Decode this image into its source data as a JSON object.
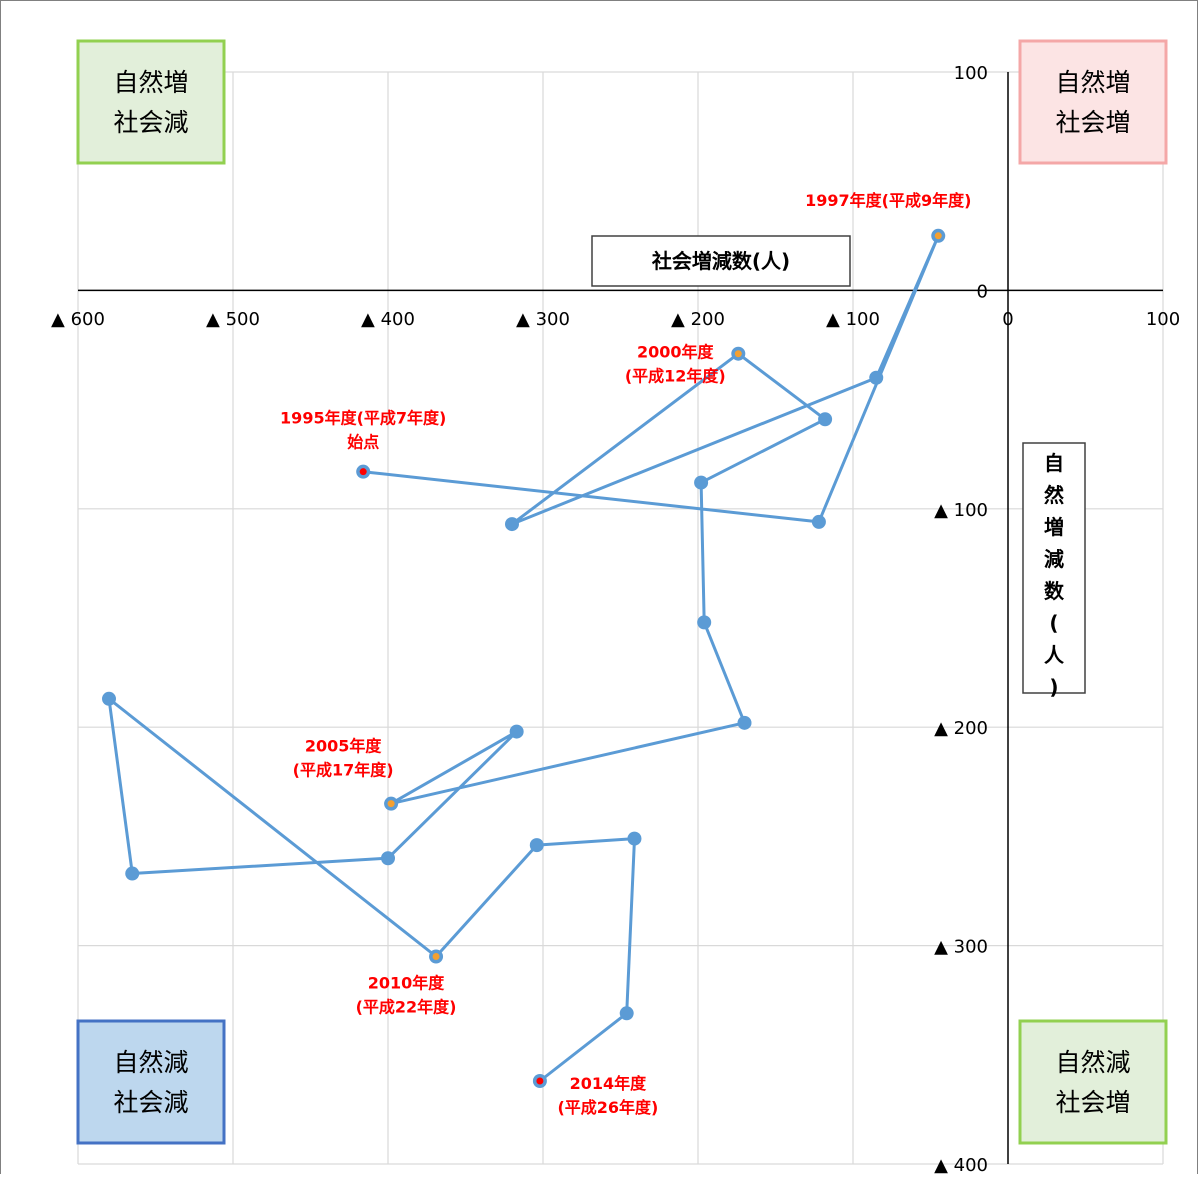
{
  "chart_data": {
    "type": "scatter",
    "xlabel": "社会増減数(人)",
    "ylabel": "自然増減数(人)",
    "xlim": [
      -600,
      100
    ],
    "ylim": [
      -400,
      100
    ],
    "x_ticks": [
      {
        "value": -600,
        "label": "▲ 600"
      },
      {
        "value": -500,
        "label": "▲ 500"
      },
      {
        "value": -400,
        "label": "▲ 400"
      },
      {
        "value": -300,
        "label": "▲ 300"
      },
      {
        "value": -200,
        "label": "▲ 200"
      },
      {
        "value": -100,
        "label": "▲ 100"
      },
      {
        "value": 0,
        "label": "0"
      },
      {
        "value": 100,
        "label": "100"
      }
    ],
    "y_ticks": [
      {
        "value": 100,
        "label": "100"
      },
      {
        "value": 0,
        "label": "0"
      },
      {
        "value": -100,
        "label": "▲ 100"
      },
      {
        "value": -200,
        "label": "▲ 200"
      },
      {
        "value": -300,
        "label": "▲ 300"
      },
      {
        "value": -400,
        "label": "▲ 400"
      }
    ],
    "grid": true,
    "connected": true,
    "colors": {
      "line": "#5b9bd5",
      "highlight_dot": "#f4a030",
      "endpoint_dot": "#ff0000",
      "annotation": "#ff0000",
      "grid": "#d9d9d9"
    },
    "series": [
      {
        "points": [
          {
            "x": -416,
            "y": -83
          },
          {
            "x": -122,
            "y": -106
          },
          {
            "x": -45,
            "y": 25
          },
          {
            "x": -85,
            "y": -40
          },
          {
            "x": -320,
            "y": -107
          },
          {
            "x": -174,
            "y": -29
          },
          {
            "x": -118,
            "y": -59
          },
          {
            "x": -198,
            "y": -88
          },
          {
            "x": -196,
            "y": -152
          },
          {
            "x": -170,
            "y": -198
          },
          {
            "x": -398,
            "y": -235
          },
          {
            "x": -317,
            "y": -202
          },
          {
            "x": -400,
            "y": -260
          },
          {
            "x": -565,
            "y": -267
          },
          {
            "x": -580,
            "y": -187
          },
          {
            "x": -369,
            "y": -305
          },
          {
            "x": -304,
            "y": -254
          },
          {
            "x": -241,
            "y": -251
          },
          {
            "x": -246,
            "y": -331
          },
          {
            "x": -302,
            "y": -362
          }
        ]
      }
    ],
    "highlights": [
      {
        "point": 0,
        "kind": "endpoint"
      },
      {
        "point": 2,
        "kind": "milestone"
      },
      {
        "point": 5,
        "kind": "milestone"
      },
      {
        "point": 10,
        "kind": "milestone"
      },
      {
        "point": 15,
        "kind": "milestone"
      },
      {
        "point": 19,
        "kind": "endpoint"
      }
    ],
    "annotations": [
      {
        "point": 0,
        "lines": [
          "1995年度(平成7年度)",
          "始点"
        ]
      },
      {
        "point": 2,
        "lines": [
          "1997年度(平成9年度)"
        ]
      },
      {
        "point": 5,
        "lines": [
          "2000年度",
          "(平成12年度)"
        ]
      },
      {
        "point": 10,
        "lines": [
          "2005年度",
          "(平成17年度)"
        ]
      },
      {
        "point": 15,
        "lines": [
          "2010年度",
          "(平成22年度)"
        ]
      },
      {
        "point": 19,
        "lines": [
          "2014年度",
          "(平成26年度)"
        ]
      }
    ],
    "quadrant_labels": [
      {
        "position": "top-left",
        "lines": [
          "自然増",
          "社会減"
        ],
        "fill": "#e2efda",
        "stroke": "#92d050"
      },
      {
        "position": "top-right",
        "lines": [
          "自然増",
          "社会増"
        ],
        "fill": "#fce4e4",
        "stroke": "#f4a7a7"
      },
      {
        "position": "bottom-left",
        "lines": [
          "自然減",
          "社会減"
        ],
        "fill": "#bdd7ee",
        "stroke": "#4472c4"
      },
      {
        "position": "bottom-right",
        "lines": [
          "自然減",
          "社会増"
        ],
        "fill": "#e2efda",
        "stroke": "#92d050"
      }
    ]
  }
}
